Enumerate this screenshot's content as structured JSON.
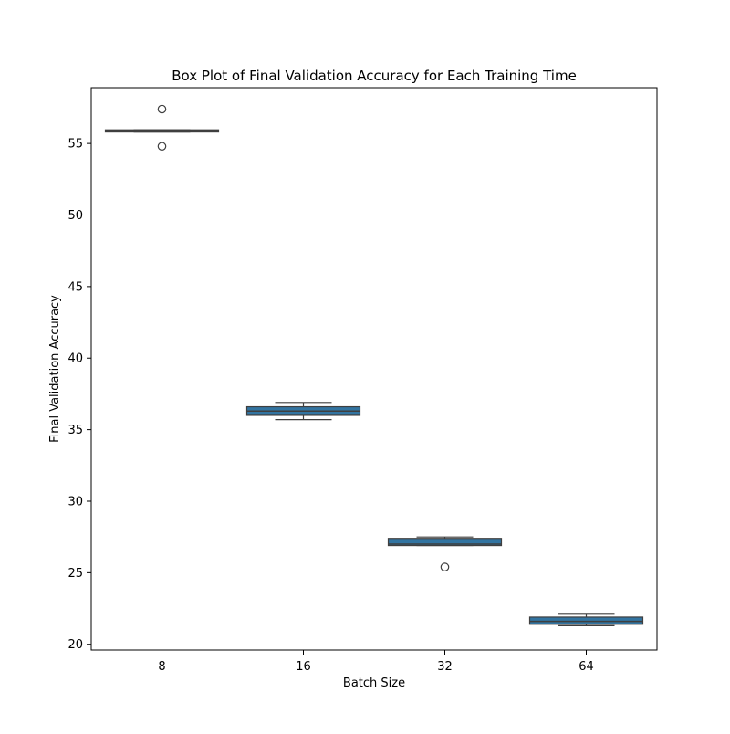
{
  "chart_data": {
    "type": "box",
    "title": "Box Plot of Final Validation Accuracy for Each Training Time",
    "xlabel": "Batch Size",
    "ylabel": "Final Validation Accuracy",
    "categories": [
      "8",
      "16",
      "32",
      "64"
    ],
    "ylim": [
      19.6,
      58.9
    ],
    "yticks": [
      20,
      25,
      30,
      35,
      40,
      45,
      50,
      55
    ],
    "grid": false,
    "box_color": "#3274a1",
    "edge_color": "#3f3f3f",
    "boxes": [
      {
        "category": "8",
        "whisker_low": 55.8,
        "q1": 55.8,
        "median": 55.9,
        "q3": 55.95,
        "whisker_high": 55.95,
        "outliers": [
          57.4,
          54.8
        ]
      },
      {
        "category": "16",
        "whisker_low": 35.7,
        "q1": 36.0,
        "median": 36.3,
        "q3": 36.6,
        "whisker_high": 36.9,
        "outliers": []
      },
      {
        "category": "32",
        "whisker_low": 26.9,
        "q1": 26.9,
        "median": 27.0,
        "q3": 27.4,
        "whisker_high": 27.5,
        "outliers": [
          25.4
        ]
      },
      {
        "category": "64",
        "whisker_low": 21.3,
        "q1": 21.4,
        "median": 21.6,
        "q3": 21.9,
        "whisker_high": 22.1,
        "outliers": []
      }
    ]
  }
}
